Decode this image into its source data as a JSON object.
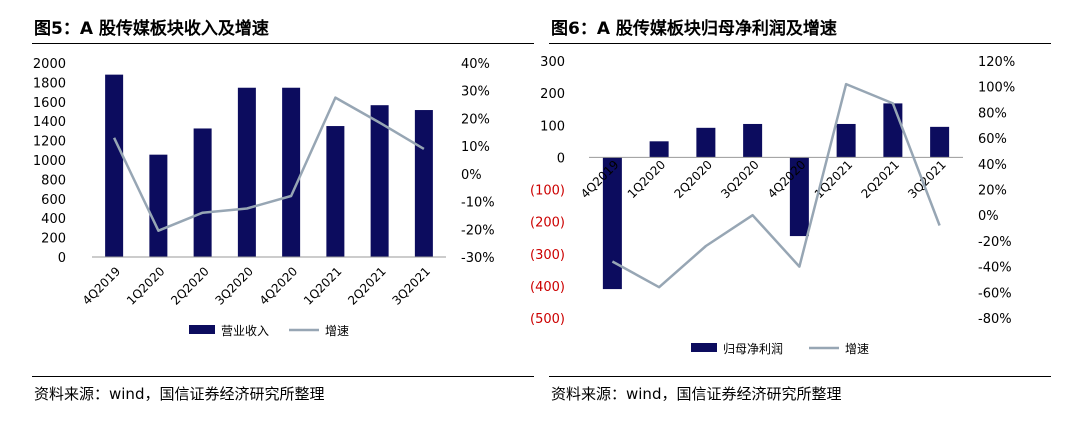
{
  "panels": [
    {
      "title": "图5：A 股传媒板块收入及增速",
      "source": "资料来源：wind，国信证券经济研究所整理",
      "chart_data": {
        "type": "bar",
        "categories": [
          "4Q2019",
          "1Q2020",
          "2Q2020",
          "3Q2020",
          "4Q2020",
          "1Q2021",
          "2Q2021",
          "3Q2021"
        ],
        "series": [
          {
            "name": "营业收入",
            "type": "bar",
            "axis": "left",
            "color": "#0c0c5e",
            "values": [
              1880,
              1055,
              1325,
              1745,
              1745,
              1350,
              1565,
              1515
            ]
          },
          {
            "name": "增速",
            "type": "line",
            "axis": "right",
            "color": "#97a6b4",
            "values": [
              13,
              -20.5,
              -14,
              -12.5,
              -8,
              27.5,
              18.5,
              9
            ]
          }
        ],
        "y_left": {
          "min": 0,
          "max": 2000,
          "ticks": [
            "0",
            "200",
            "400",
            "600",
            "800",
            "1000",
            "1200",
            "1400",
            "1600",
            "1800",
            "2000"
          ]
        },
        "y_right": {
          "min": -30,
          "max": 40,
          "ticks": [
            "-30%",
            "-20%",
            "-10%",
            "0%",
            "10%",
            "20%",
            "30%",
            "40%"
          ]
        },
        "legend_position": "bottom",
        "grid": false
      }
    },
    {
      "title": "图6：A 股传媒板块归母净利润及增速",
      "source": "资料来源：wind，国信证券经济研究所整理",
      "chart_data": {
        "type": "bar",
        "categories": [
          "4Q2019",
          "1Q2020",
          "2Q2020",
          "3Q2020",
          "4Q2020",
          "1Q2021",
          "2Q2021",
          "3Q2021"
        ],
        "series": [
          {
            "name": "归母净利润",
            "type": "bar",
            "axis": "left",
            "color": "#0c0c5e",
            "values": [
              -410,
              50,
              92,
              104,
              -245,
              104,
              168,
              95
            ]
          },
          {
            "name": "增速",
            "type": "line",
            "axis": "right",
            "color": "#97a6b4",
            "values": [
              -36,
              -56,
              -24,
              0,
              -40,
              102,
              87,
              -8
            ]
          }
        ],
        "y_left": {
          "min": -500,
          "max": 300,
          "ticks": [
            "(500)",
            "(400)",
            "(300)",
            "(200)",
            "(100)",
            "0",
            "100",
            "200",
            "300"
          ],
          "negative_color": "#cc0000"
        },
        "y_right": {
          "min": -80,
          "max": 120,
          "ticks": [
            "-80%",
            "-60%",
            "-40%",
            "-20%",
            "0%",
            "20%",
            "40%",
            "60%",
            "80%",
            "100%",
            "120%"
          ]
        },
        "legend_position": "bottom",
        "grid": false
      }
    }
  ]
}
